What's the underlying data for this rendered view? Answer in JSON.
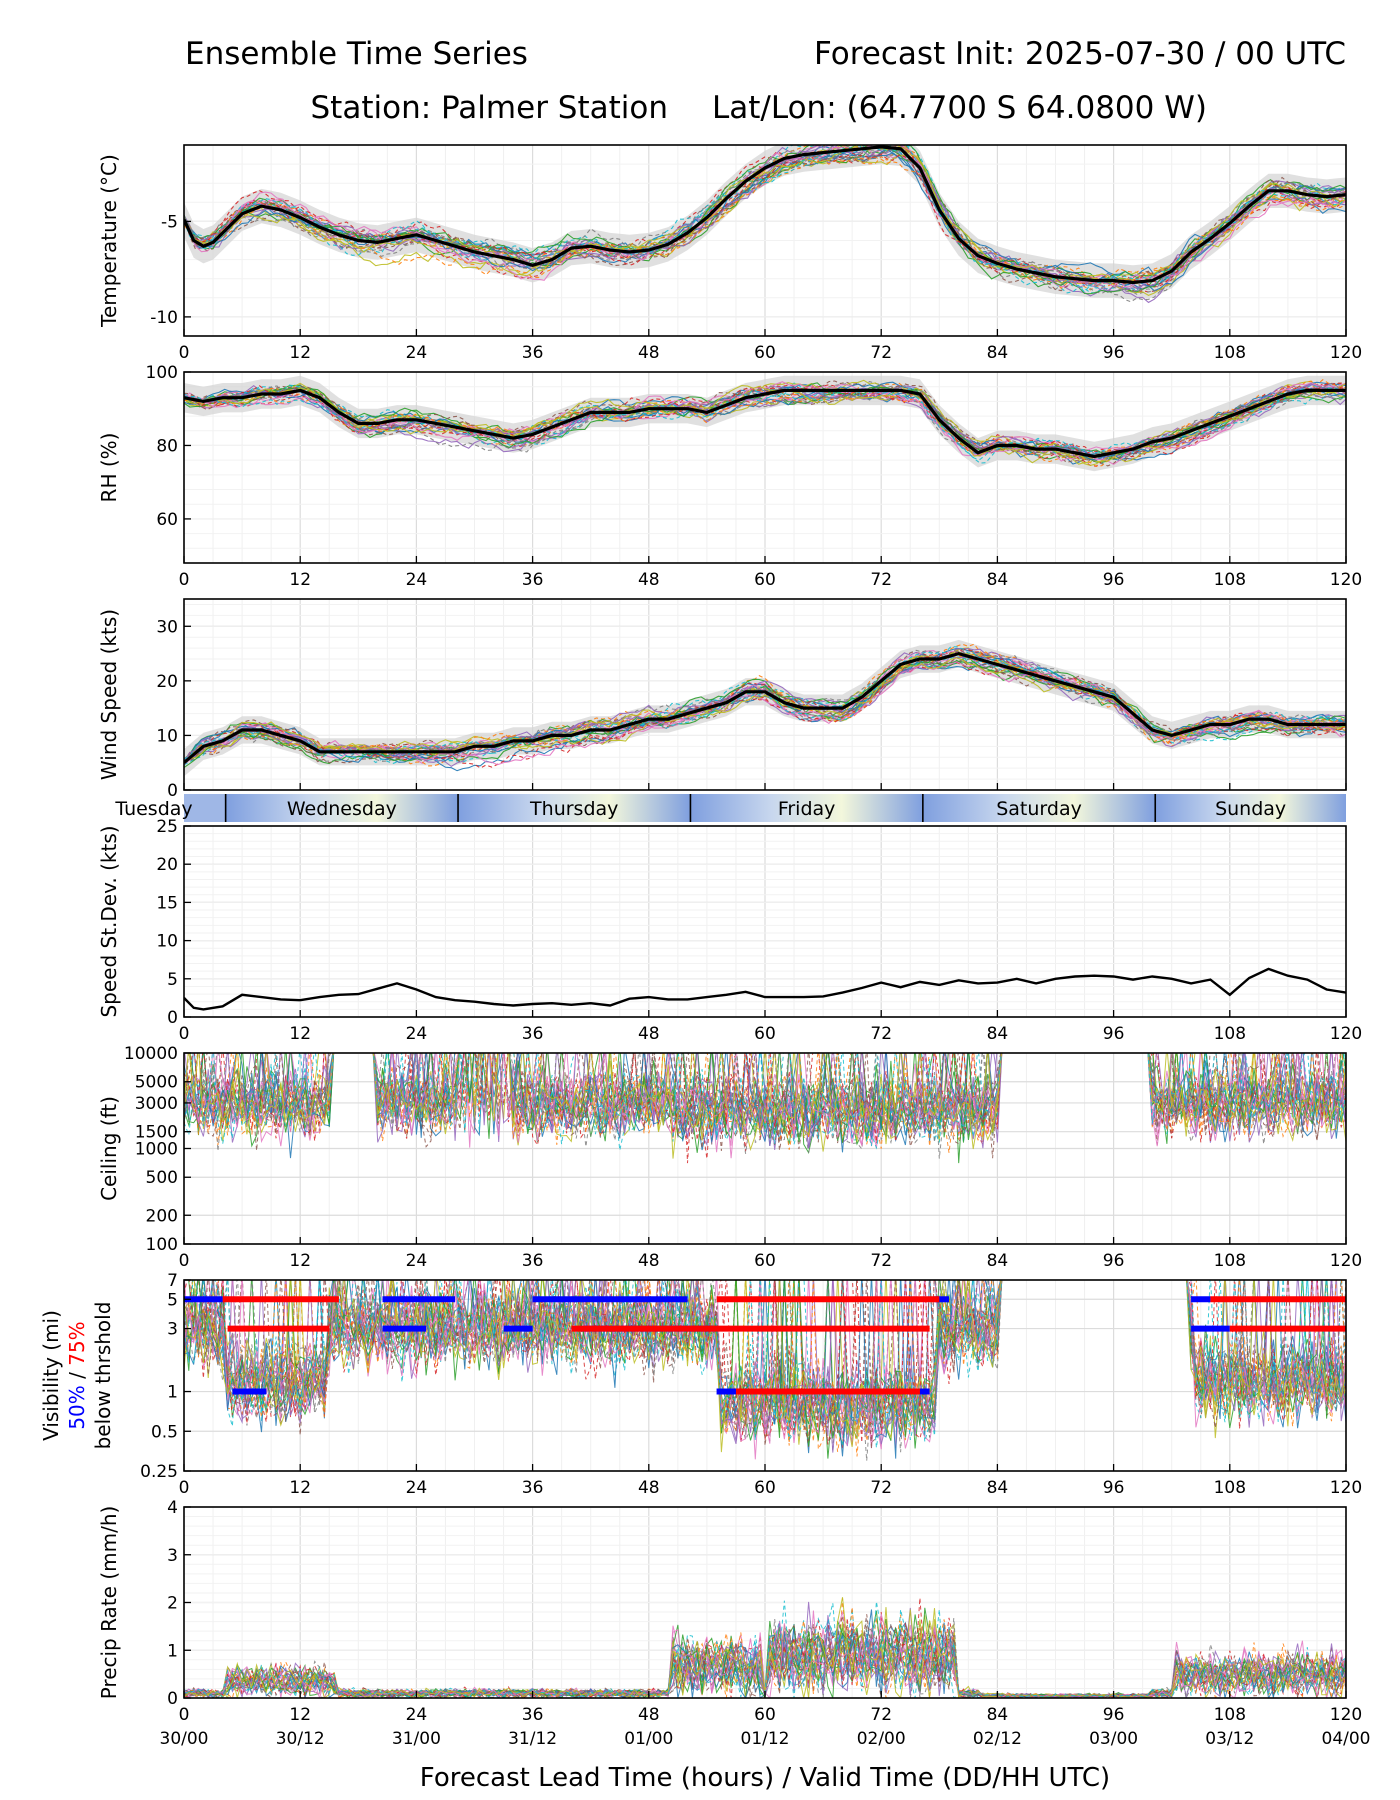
{
  "header": {
    "title_left": "Ensemble Time Series",
    "title_right": "Forecast Init: 2025-07-30 / 00 UTC",
    "station": "Station: Palmer Station",
    "latlon": "Lat/Lon: (64.7700 S 64.0800 W)"
  },
  "xaxis": {
    "label": "Forecast Lead Time (hours) / Valid Time (DD/HH UTC)",
    "ticks": [
      0,
      12,
      24,
      36,
      48,
      60,
      72,
      84,
      96,
      108,
      120
    ],
    "valid_times": [
      "30/00",
      "30/12",
      "31/00",
      "31/12",
      "01/00",
      "01/12",
      "02/00",
      "02/12",
      "03/00",
      "03/12",
      "04/00"
    ],
    "range": [
      0,
      120
    ]
  },
  "day_strip": {
    "days": [
      {
        "label": "Tuesday",
        "start": 0,
        "end": 4.3
      },
      {
        "label": "Wednesday",
        "start": 4.3,
        "end": 28.3
      },
      {
        "label": "Thursday",
        "start": 28.3,
        "end": 52.3
      },
      {
        "label": "Friday",
        "start": 52.3,
        "end": 76.3
      },
      {
        "label": "Saturday",
        "start": 76.3,
        "end": 100.3
      },
      {
        "label": "Sunday",
        "start": 100.3,
        "end": 120
      }
    ]
  },
  "colors": {
    "members": [
      "#1f77b4",
      "#ff7f0e",
      "#2ca02c",
      "#d62728",
      "#9467bd",
      "#8c564b",
      "#e377c2",
      "#7f7f7f",
      "#bcbd22",
      "#17becf"
    ],
    "mean": "#000000",
    "spread": "#d3d3d3",
    "vis_50": "#0000ff",
    "vis_75": "#ff0000"
  },
  "chart_data": [
    {
      "type": "line",
      "ylabel": "Temperature (°C)",
      "ylim": [
        -11,
        -1
      ],
      "yticks": [
        -10,
        -5
      ],
      "ensemble_members": 30,
      "mean": {
        "x": [
          0,
          1,
          2,
          3,
          4,
          6,
          8,
          10,
          12,
          14,
          16,
          18,
          20,
          22,
          24,
          26,
          28,
          30,
          32,
          34,
          36,
          38,
          40,
          42,
          44,
          46,
          48,
          50,
          52,
          54,
          56,
          58,
          60,
          62,
          64,
          66,
          68,
          70,
          72,
          74,
          76,
          78,
          80,
          82,
          84,
          86,
          88,
          90,
          92,
          94,
          96,
          98,
          100,
          102,
          104,
          106,
          108,
          110,
          112,
          114,
          116,
          118,
          120
        ],
        "y": [
          -4.9,
          -6.0,
          -6.3,
          -6.1,
          -5.6,
          -4.6,
          -4.2,
          -4.4,
          -4.8,
          -5.3,
          -5.7,
          -6.0,
          -6.1,
          -5.9,
          -5.7,
          -6.0,
          -6.3,
          -6.6,
          -6.8,
          -7.0,
          -7.3,
          -7.0,
          -6.4,
          -6.3,
          -6.5,
          -6.6,
          -6.5,
          -6.2,
          -5.6,
          -4.8,
          -3.8,
          -2.9,
          -2.2,
          -1.7,
          -1.5,
          -1.4,
          -1.3,
          -1.2,
          -1.1,
          -1.2,
          -2.2,
          -4.4,
          -5.9,
          -6.8,
          -7.2,
          -7.5,
          -7.7,
          -7.9,
          -8.0,
          -8.1,
          -8.1,
          -8.2,
          -8.1,
          -7.6,
          -6.6,
          -5.9,
          -5.1,
          -4.2,
          -3.4,
          -3.4,
          -3.6,
          -3.7,
          -3.6
        ]
      }
    },
    {
      "type": "line",
      "ylabel": "RH (%)",
      "ylim": [
        48,
        100
      ],
      "yticks": [
        60,
        80,
        100
      ],
      "ensemble_members": 30,
      "mean": {
        "x": [
          0,
          2,
          4,
          6,
          8,
          10,
          12,
          14,
          16,
          18,
          20,
          22,
          24,
          26,
          28,
          30,
          32,
          34,
          36,
          38,
          40,
          42,
          44,
          46,
          48,
          50,
          52,
          54,
          56,
          58,
          60,
          62,
          64,
          66,
          68,
          70,
          72,
          74,
          76,
          78,
          80,
          82,
          84,
          86,
          88,
          90,
          92,
          94,
          96,
          98,
          100,
          102,
          104,
          106,
          108,
          110,
          112,
          114,
          116,
          118,
          120
        ],
        "y": [
          93,
          92,
          93,
          93,
          94,
          94,
          95,
          93,
          89,
          86,
          86,
          87,
          87,
          86,
          85,
          84,
          83,
          82,
          83,
          85,
          87,
          89,
          89,
          89,
          90,
          90,
          90,
          89,
          91,
          93,
          94,
          95,
          95,
          95,
          95,
          95,
          95,
          95,
          94,
          87,
          82,
          78,
          80,
          80,
          79,
          79,
          78,
          77,
          78,
          79,
          81,
          82,
          84,
          86,
          88,
          90,
          92,
          94,
          95,
          95,
          95
        ]
      }
    },
    {
      "type": "line",
      "ylabel": "Wind Speed (kts)",
      "ylim": [
        0,
        35
      ],
      "yticks": [
        0,
        10,
        20,
        30
      ],
      "ensemble_members": 30,
      "mean": {
        "x": [
          0,
          2,
          4,
          6,
          8,
          10,
          12,
          14,
          16,
          18,
          20,
          22,
          24,
          26,
          28,
          30,
          32,
          34,
          36,
          38,
          40,
          42,
          44,
          46,
          48,
          50,
          52,
          54,
          56,
          58,
          60,
          62,
          64,
          66,
          68,
          70,
          72,
          74,
          76,
          78,
          80,
          82,
          84,
          86,
          88,
          90,
          92,
          94,
          96,
          98,
          100,
          102,
          104,
          106,
          108,
          110,
          112,
          114,
          116,
          118,
          120
        ],
        "y": [
          5,
          8,
          9,
          11,
          11,
          10,
          9,
          7,
          7,
          7,
          7,
          7,
          7,
          7,
          7,
          8,
          8,
          9,
          9,
          10,
          10,
          11,
          11,
          12,
          13,
          13,
          14,
          15,
          16,
          18,
          18,
          16,
          15,
          15,
          15,
          17,
          20,
          23,
          24,
          24,
          25,
          24,
          23,
          22,
          21,
          20,
          19,
          18,
          17,
          14,
          11,
          10,
          11,
          12,
          12,
          13,
          13,
          12,
          12,
          12,
          12
        ]
      }
    },
    {
      "type": "line",
      "ylabel": "Speed St.Dev. (kts)",
      "ylim": [
        0,
        25
      ],
      "yticks": [
        0,
        5,
        10,
        15,
        20,
        25
      ],
      "series": [
        {
          "x": [
            0,
            1,
            2,
            4,
            6,
            8,
            10,
            12,
            14,
            16,
            18,
            20,
            22,
            24,
            26,
            28,
            30,
            32,
            34,
            36,
            38,
            40,
            42,
            44,
            46,
            48,
            50,
            52,
            54,
            56,
            58,
            60,
            62,
            64,
            66,
            68,
            70,
            72,
            74,
            76,
            78,
            80,
            82,
            84,
            86,
            88,
            90,
            92,
            94,
            96,
            98,
            100,
            102,
            104,
            106,
            108,
            110,
            112,
            114,
            116,
            118,
            120
          ],
          "y": [
            2.5,
            1.2,
            1.0,
            1.4,
            2.9,
            2.6,
            2.3,
            2.2,
            2.6,
            2.9,
            3.0,
            3.7,
            4.4,
            3.6,
            2.6,
            2.2,
            2.0,
            1.7,
            1.5,
            1.7,
            1.8,
            1.6,
            1.8,
            1.5,
            2.4,
            2.6,
            2.3,
            2.3,
            2.6,
            2.9,
            3.3,
            2.6,
            2.6,
            2.6,
            2.7,
            3.2,
            3.8,
            4.5,
            3.9,
            4.6,
            4.2,
            4.8,
            4.4,
            4.5,
            5.0,
            4.4,
            5.0,
            5.3,
            5.4,
            5.3,
            4.9,
            5.3,
            5.0,
            4.4,
            4.9,
            2.9,
            5.1,
            6.3,
            5.4,
            4.9,
            3.6,
            3.2
          ]
        }
      ]
    },
    {
      "type": "line",
      "ylabel": "Ceiling (ft)",
      "yscale": "log",
      "ylim": [
        100,
        10000
      ],
      "yticks": [
        100,
        200,
        500,
        1000,
        1500,
        3000,
        5000,
        10000
      ],
      "ensemble_members": 30
    },
    {
      "type": "line",
      "ylabel": "Visibility (mi)",
      "ylabel_50": "50%",
      "ylabel_sep": " / ",
      "ylabel_75": "75%",
      "ylabel_tail": "below thrshold",
      "yscale": "log",
      "ylim": [
        0.25,
        7
      ],
      "yticks": [
        0.25,
        0.5,
        1,
        3,
        5,
        7
      ],
      "ensemble_members": 30,
      "threshold_50": [
        {
          "level": 5,
          "start": 0,
          "end": 4
        },
        {
          "level": 5,
          "start": 20.5,
          "end": 28
        },
        {
          "level": 5,
          "start": 36,
          "end": 52
        },
        {
          "level": 5,
          "start": 77.5,
          "end": 79
        },
        {
          "level": 5,
          "start": 104,
          "end": 106
        },
        {
          "level": 3,
          "start": 20.5,
          "end": 25
        },
        {
          "level": 3,
          "start": 33,
          "end": 36
        },
        {
          "level": 3,
          "start": 41,
          "end": 55
        },
        {
          "level": 3,
          "start": 104,
          "end": 108
        },
        {
          "level": 1,
          "start": 5,
          "end": 8.5
        },
        {
          "level": 1,
          "start": 55,
          "end": 77
        }
      ],
      "threshold_75": [
        {
          "level": 5,
          "start": 4,
          "end": 16
        },
        {
          "level": 5,
          "start": 55,
          "end": 78
        },
        {
          "level": 5,
          "start": 106,
          "end": 120
        },
        {
          "level": 3,
          "start": 4.5,
          "end": 15
        },
        {
          "level": 3,
          "start": 40,
          "end": 77
        },
        {
          "level": 3,
          "start": 108,
          "end": 120
        },
        {
          "level": 1,
          "start": 57,
          "end": 76
        }
      ]
    },
    {
      "type": "line",
      "ylabel": "Precip Rate (mm/h)",
      "ylim": [
        0,
        4
      ],
      "yticks": [
        0,
        1,
        2,
        3,
        4
      ],
      "ensemble_members": 30
    }
  ]
}
